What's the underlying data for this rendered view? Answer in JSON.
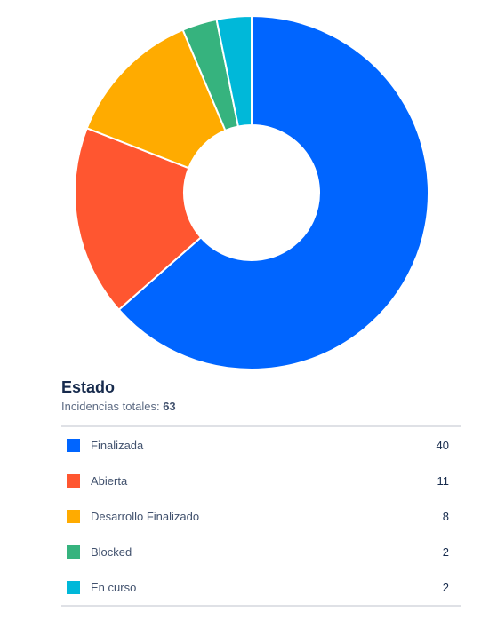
{
  "chart_data": {
    "type": "pie",
    "title": "Estado",
    "categories": [
      "Finalizada",
      "Abierta",
      "Desarrollo Finalizado",
      "Blocked",
      "En curso"
    ],
    "values": [
      40,
      11,
      8,
      2,
      2
    ],
    "colors": [
      "#0065ff",
      "#ff5630",
      "#ffab00",
      "#36b37e",
      "#00b8d9"
    ],
    "donut": true,
    "legend_position": "bottom"
  },
  "summary": {
    "title": "Estado",
    "total_label": "Incidencias totales:",
    "total_value": "63"
  }
}
